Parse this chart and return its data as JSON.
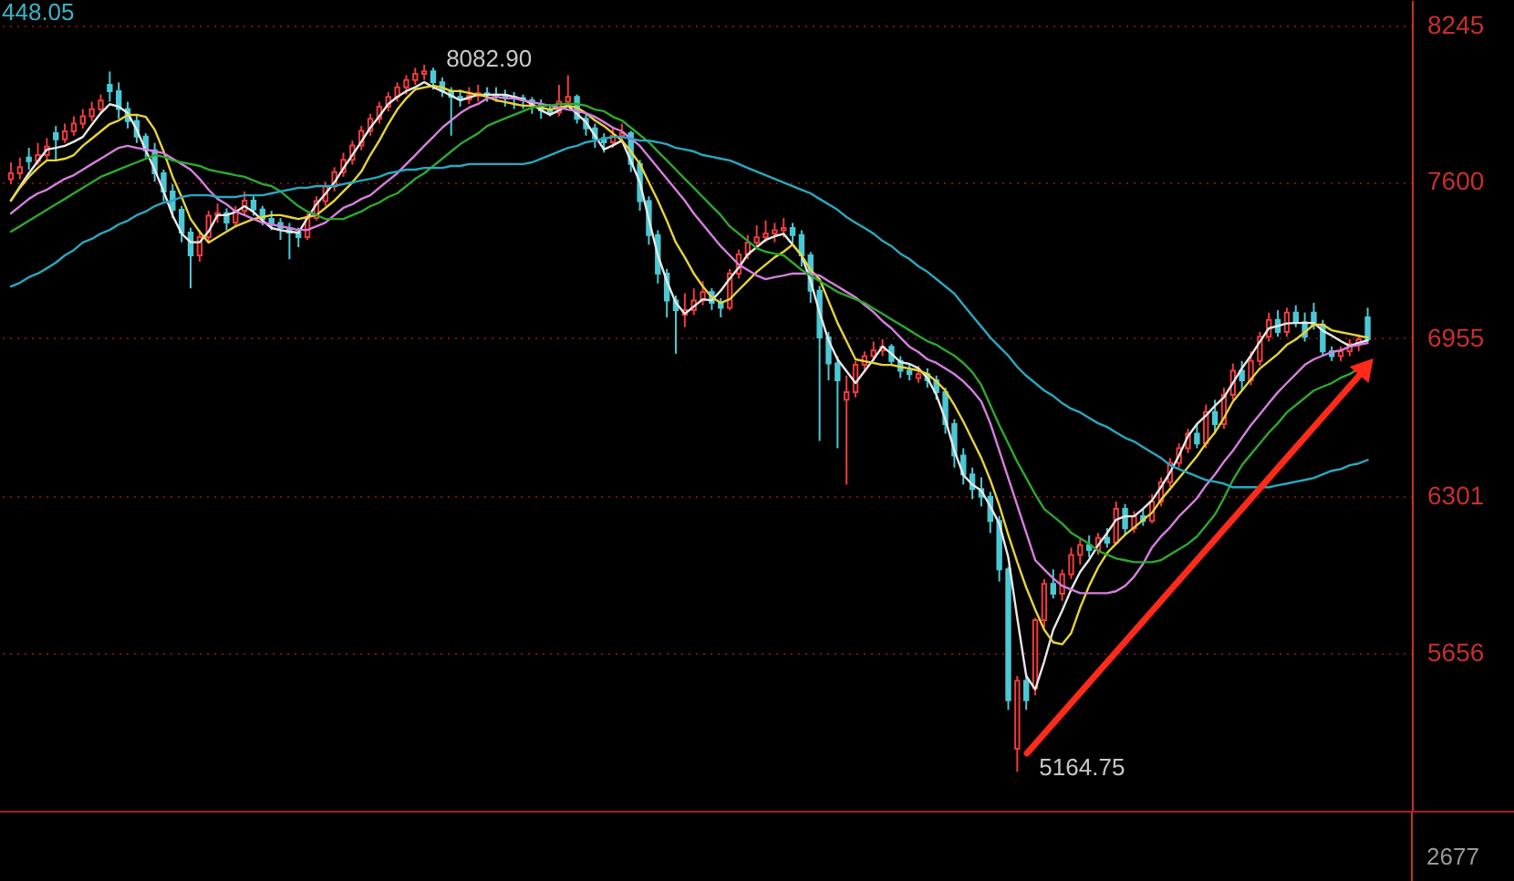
{
  "chart_data": {
    "type": "candlestick",
    "categories": [
      null,
      null,
      null,
      null,
      null,
      null,
      null,
      null,
      null,
      null,
      null,
      null,
      null,
      null,
      null,
      null,
      null,
      null,
      null,
      null,
      null,
      null,
      null,
      null,
      null,
      null,
      null,
      null,
      null,
      null,
      null,
      null,
      null,
      null,
      null,
      null,
      null,
      null,
      null,
      null,
      null,
      null,
      null,
      null,
      null,
      null,
      null,
      null,
      null,
      null,
      null,
      null,
      null,
      null,
      null,
      null,
      null,
      null,
      null,
      null,
      null,
      null,
      null,
      null,
      null,
      null,
      null,
      null,
      null,
      null,
      null,
      null,
      null,
      null,
      null,
      null,
      null,
      null,
      null,
      null,
      null,
      null,
      null,
      null,
      null,
      null,
      null,
      null,
      null,
      null,
      null,
      null,
      null,
      null,
      null,
      null,
      null,
      null,
      null,
      null,
      null,
      null,
      null,
      null,
      null,
      null,
      null,
      null,
      null,
      null,
      null,
      null,
      null,
      null,
      null,
      null,
      null,
      null,
      null,
      null,
      null,
      null,
      null,
      null,
      null,
      null,
      null,
      null,
      null,
      null,
      null,
      null,
      null,
      null,
      null,
      null,
      null,
      null,
      null,
      null,
      null,
      null,
      null,
      null,
      null,
      null,
      null,
      null,
      null,
      null,
      null,
      null
    ],
    "ohlc": [
      [
        7610,
        7680,
        7590,
        7635
      ],
      [
        7635,
        7700,
        7610,
        7660
      ],
      [
        7700,
        7740,
        7650,
        7685
      ],
      [
        7685,
        7760,
        7670,
        7710
      ],
      [
        7710,
        7780,
        7690,
        7745
      ],
      [
        7800,
        7830,
        7690,
        7775
      ],
      [
        7775,
        7840,
        7760,
        7808
      ],
      [
        7808,
        7870,
        7790,
        7840
      ],
      [
        7840,
        7900,
        7820,
        7870
      ],
      [
        7870,
        7930,
        7850,
        7899
      ],
      [
        7899,
        7960,
        7880,
        7935
      ],
      [
        8000,
        8055,
        7930,
        7974
      ],
      [
        7974,
        8010,
        7860,
        7900
      ],
      [
        7900,
        7930,
        7820,
        7850
      ],
      [
        7850,
        7880,
        7760,
        7786
      ],
      [
        7786,
        7800,
        7700,
        7730
      ],
      [
        7730,
        7760,
        7600,
        7635
      ],
      [
        7635,
        7650,
        7520,
        7560
      ],
      [
        7560,
        7590,
        7450,
        7484
      ],
      [
        7484,
        7500,
        7350,
        7390
      ],
      [
        7390,
        7410,
        7160,
        7296
      ],
      [
        7296,
        7400,
        7270,
        7371
      ],
      [
        7371,
        7480,
        7350,
        7460
      ],
      [
        7460,
        7510,
        7430,
        7470
      ],
      [
        7470,
        7490,
        7400,
        7432
      ],
      [
        7432,
        7500,
        7420,
        7480
      ],
      [
        7480,
        7560,
        7460,
        7522
      ],
      [
        7522,
        7540,
        7460,
        7485
      ],
      [
        7485,
        7500,
        7420,
        7447
      ],
      [
        7447,
        7480,
        7400,
        7430
      ],
      [
        7430,
        7450,
        7360,
        7409
      ],
      [
        7409,
        7430,
        7280,
        7390
      ],
      [
        7390,
        7410,
        7330,
        7371
      ],
      [
        7371,
        7470,
        7360,
        7450
      ],
      [
        7450,
        7540,
        7440,
        7520
      ],
      [
        7520,
        7600,
        7500,
        7580
      ],
      [
        7580,
        7660,
        7560,
        7640
      ],
      [
        7640,
        7720,
        7620,
        7690
      ],
      [
        7690,
        7770,
        7670,
        7750
      ],
      [
        7750,
        7830,
        7730,
        7810
      ],
      [
        7810,
        7880,
        7790,
        7860
      ],
      [
        7860,
        7930,
        7840,
        7910
      ],
      [
        7910,
        7970,
        7890,
        7950
      ],
      [
        7950,
        8010,
        7930,
        7990
      ],
      [
        7990,
        8040,
        7960,
        8020
      ],
      [
        8020,
        8070,
        8000,
        8045
      ],
      [
        8045,
        8082.9,
        8020,
        8055
      ],
      [
        8055,
        8070,
        7980,
        8010
      ],
      [
        8010,
        8030,
        7950,
        7975
      ],
      [
        7975,
        7990,
        7790,
        7950
      ],
      [
        7950,
        7980,
        7910,
        7940
      ],
      [
        7940,
        7990,
        7920,
        7955
      ],
      [
        7955,
        8000,
        7930,
        7965
      ],
      [
        7965,
        7990,
        7930,
        7960
      ],
      [
        7960,
        7990,
        7930,
        7959
      ],
      [
        7959,
        7980,
        7910,
        7950
      ],
      [
        7950,
        7970,
        7900,
        7945
      ],
      [
        7945,
        7960,
        7900,
        7936
      ],
      [
        7936,
        7950,
        7880,
        7915
      ],
      [
        7915,
        7940,
        7860,
        7895
      ],
      [
        7895,
        7920,
        7870,
        7885
      ],
      [
        7885,
        8000,
        7870,
        7930
      ],
      [
        7930,
        8040,
        7910,
        7950
      ],
      [
        7950,
        7960,
        7840,
        7860
      ],
      [
        7860,
        7880,
        7790,
        7820
      ],
      [
        7820,
        7840,
        7740,
        7780
      ],
      [
        7780,
        7800,
        7720,
        7763
      ],
      [
        7763,
        7820,
        7740,
        7790
      ],
      [
        7790,
        7840,
        7760,
        7800
      ],
      [
        7800,
        7810,
        7640,
        7673
      ],
      [
        7673,
        7690,
        7480,
        7520
      ],
      [
        7520,
        7540,
        7340,
        7380
      ],
      [
        7380,
        7400,
        7180,
        7221
      ],
      [
        7221,
        7240,
        7040,
        7110
      ],
      [
        7110,
        7130,
        6890,
        7070
      ],
      [
        7050,
        7140,
        7000,
        7070
      ],
      [
        7070,
        7160,
        7050,
        7110
      ],
      [
        7110,
        7190,
        7090,
        7145
      ],
      [
        7145,
        7160,
        7070,
        7100
      ],
      [
        7100,
        7120,
        7040,
        7080
      ],
      [
        7080,
        7240,
        7070,
        7221
      ],
      [
        7221,
        7320,
        7200,
        7300
      ],
      [
        7300,
        7380,
        7280,
        7349
      ],
      [
        7349,
        7420,
        7330,
        7370
      ],
      [
        7370,
        7440,
        7350,
        7386
      ],
      [
        7386,
        7430,
        7350,
        7400
      ],
      [
        7400,
        7450,
        7370,
        7409
      ],
      [
        7409,
        7430,
        7340,
        7380
      ],
      [
        7380,
        7400,
        7250,
        7296
      ],
      [
        7296,
        7310,
        7100,
        7150
      ],
      [
        7150,
        7170,
        6530,
        6957
      ],
      [
        6957,
        6980,
        6780,
        6850
      ],
      [
        6850,
        6880,
        6500,
        6780
      ],
      [
        6700,
        6800,
        6350,
        6731
      ],
      [
        6731,
        6860,
        6710,
        6844
      ],
      [
        6844,
        6900,
        6820,
        6880
      ],
      [
        6880,
        6940,
        6860,
        6904
      ],
      [
        6904,
        6950,
        6880,
        6919
      ],
      [
        6919,
        6930,
        6840,
        6860
      ],
      [
        6860,
        6880,
        6790,
        6820
      ],
      [
        6820,
        6850,
        6780,
        6806
      ],
      [
        6790,
        6840,
        6770,
        6806
      ],
      [
        6806,
        6830,
        6750,
        6780
      ],
      [
        6780,
        6800,
        6700,
        6731
      ],
      [
        6731,
        6750,
        6560,
        6600
      ],
      [
        6600,
        6620,
        6420,
        6470
      ],
      [
        6470,
        6500,
        6350,
        6392
      ],
      [
        6392,
        6420,
        6290,
        6332
      ],
      [
        6332,
        6380,
        6260,
        6300
      ],
      [
        6300,
        6320,
        6150,
        6200
      ],
      [
        6200,
        6220,
        5950,
        6000
      ],
      [
        6000,
        6010,
        5420,
        5460
      ],
      [
        5260,
        5560,
        5164.75,
        5540
      ],
      [
        5540,
        5570,
        5420,
        5460
      ],
      [
        5510,
        5800,
        5480,
        5790
      ],
      [
        5790,
        5960,
        5760,
        5940
      ],
      [
        5940,
        6000,
        5880,
        5900
      ],
      [
        5900,
        6000,
        5870,
        5980
      ],
      [
        5980,
        6090,
        5960,
        6060
      ],
      [
        6060,
        6130,
        6020,
        6100
      ],
      [
        6100,
        6140,
        6050,
        6080
      ],
      [
        6080,
        6150,
        6060,
        6130
      ],
      [
        6130,
        6170,
        6090,
        6110
      ],
      [
        6110,
        6280,
        6100,
        6250
      ],
      [
        6250,
        6270,
        6140,
        6170
      ],
      [
        6170,
        6240,
        6150,
        6220
      ],
      [
        6220,
        6250,
        6180,
        6200
      ],
      [
        6200,
        6310,
        6190,
        6280
      ],
      [
        6280,
        6380,
        6260,
        6360
      ],
      [
        6360,
        6460,
        6340,
        6440
      ],
      [
        6440,
        6520,
        6420,
        6500
      ],
      [
        6500,
        6580,
        6480,
        6560
      ],
      [
        6560,
        6600,
        6500,
        6520
      ],
      [
        6520,
        6680,
        6500,
        6650
      ],
      [
        6650,
        6700,
        6560,
        6600
      ],
      [
        6600,
        6750,
        6580,
        6720
      ],
      [
        6720,
        6850,
        6700,
        6820
      ],
      [
        6820,
        6860,
        6740,
        6780
      ],
      [
        6780,
        6900,
        6760,
        6860
      ],
      [
        6860,
        6980,
        6840,
        6960
      ],
      [
        6960,
        7060,
        6940,
        7030
      ],
      [
        7030,
        7070,
        6960,
        6980
      ],
      [
        6980,
        7080,
        6960,
        7060
      ],
      [
        7060,
        7090,
        7000,
        7020
      ],
      [
        7020,
        7060,
        6940,
        6960
      ],
      [
        7060,
        7100,
        6990,
        7010
      ],
      [
        7010,
        7030,
        6880,
        6900
      ],
      [
        6900,
        6920,
        6860,
        6880
      ],
      [
        6880,
        6920,
        6860,
        6900
      ],
      [
        6900,
        6950,
        6880,
        6930
      ],
      [
        6930,
        6970,
        6900,
        6950
      ],
      [
        7040,
        7080,
        6940,
        6950
      ]
    ],
    "colors": [
      "#f03c3c",
      "#f03c3c",
      "#4cc8d4",
      "#f03c3c",
      "#f03c3c",
      "#4cc8d4",
      "#f03c3c",
      "#f03c3c",
      "#f03c3c",
      "#f03c3c",
      "#f03c3c",
      "#4cc8d4",
      "#4cc8d4",
      "#4cc8d4",
      "#4cc8d4",
      "#4cc8d4",
      "#4cc8d4",
      "#4cc8d4",
      "#4cc8d4",
      "#4cc8d4",
      "#4cc8d4",
      "#f03c3c",
      "#f03c3c",
      "#f03c3c",
      "#4cc8d4",
      "#f03c3c",
      "#f03c3c",
      "#4cc8d4",
      "#4cc8d4",
      "#4cc8d4",
      "#4cc8d4",
      "#4cc8d4",
      "#4cc8d4",
      "#f03c3c",
      "#f03c3c",
      "#f03c3c",
      "#f03c3c",
      "#f03c3c",
      "#f03c3c",
      "#f03c3c",
      "#f03c3c",
      "#f03c3c",
      "#f03c3c",
      "#f03c3c",
      "#f03c3c",
      "#f03c3c",
      "#f03c3c",
      "#4cc8d4",
      "#4cc8d4",
      "#4cc8d4",
      "#4cc8d4",
      "#f03c3c",
      "#f03c3c",
      "#4cc8d4",
      "#4cc8d4",
      "#4cc8d4",
      "#4cc8d4",
      "#4cc8d4",
      "#4cc8d4",
      "#4cc8d4",
      "#4cc8d4",
      "#f03c3c",
      "#f03c3c",
      "#4cc8d4",
      "#4cc8d4",
      "#4cc8d4",
      "#4cc8d4",
      "#f03c3c",
      "#f03c3c",
      "#4cc8d4",
      "#4cc8d4",
      "#4cc8d4",
      "#4cc8d4",
      "#4cc8d4",
      "#4cc8d4",
      "#f03c3c",
      "#f03c3c",
      "#f03c3c",
      "#4cc8d4",
      "#4cc8d4",
      "#f03c3c",
      "#f03c3c",
      "#f03c3c",
      "#f03c3c",
      "#f03c3c",
      "#f03c3c",
      "#f03c3c",
      "#4cc8d4",
      "#4cc8d4",
      "#4cc8d4",
      "#4cc8d4",
      "#4cc8d4",
      "#4cc8d4",
      "#f03c3c",
      "#f03c3c",
      "#f03c3c",
      "#f03c3c",
      "#f03c3c",
      "#4cc8d4",
      "#4cc8d4",
      "#4cc8d4",
      "#f03c3c",
      "#4cc8d4",
      "#4cc8d4",
      "#4cc8d4",
      "#4cc8d4",
      "#4cc8d4",
      "#4cc8d4",
      "#4cc8d4",
      "#4cc8d4",
      "#4cc8d4",
      "#4cc8d4",
      "#f03c3c",
      "#4cc8d4",
      "#f03c3c",
      "#f03c3c",
      "#4cc8d4",
      "#f03c3c",
      "#f03c3c",
      "#f03c3c",
      "#4cc8d4",
      "#f03c3c",
      "#4cc8d4",
      "#f03c3c",
      "#4cc8d4",
      "#f03c3c",
      "#4cc8d4",
      "#f03c3c",
      "#f03c3c",
      "#f03c3c",
      "#f03c3c",
      "#f03c3c",
      "#4cc8d4",
      "#f03c3c",
      "#4cc8d4",
      "#f03c3c",
      "#f03c3c",
      "#4cc8d4",
      "#f03c3c",
      "#f03c3c",
      "#f03c3c",
      "#4cc8d4",
      "#f03c3c",
      "#4cc8d4",
      "#4cc8d4",
      "#4cc8d4",
      "#4cc8d4",
      "#4cc8d4",
      "#f03c3c",
      "#f03c3c",
      "#f03c3c",
      "#4cc8d4"
    ],
    "series": [
      {
        "type": "line",
        "color": "#e8e8e8",
        "values": [
          7522,
          7580,
          7635,
          7685,
          7733,
          7740,
          7748,
          7765,
          7785,
          7835,
          7883,
          7920,
          7910,
          7883,
          7815,
          7730,
          7650,
          7560,
          7460,
          7386,
          7350,
          7350,
          7395,
          7462,
          7462,
          7475,
          7499,
          7475,
          7440,
          7409,
          7400,
          7394,
          7390,
          7450,
          7507,
          7550,
          7597,
          7655,
          7710,
          7765,
          7823,
          7870,
          7921,
          7950,
          7974,
          7990,
          8011,
          7990,
          7974,
          7955,
          7936,
          7948,
          7959,
          7959,
          7959,
          7959,
          7950,
          7940,
          7920,
          7895,
          7876,
          7895,
          7914,
          7880,
          7846,
          7790,
          7733,
          7750,
          7770,
          7685,
          7597,
          7445,
          7296,
          7190,
          7100,
          7055,
          7085,
          7115,
          7110,
          7150,
          7200,
          7245,
          7300,
          7330,
          7360,
          7375,
          7385,
          7340,
          7296,
          7190,
          7060,
          6945,
          6867,
          6818,
          6769,
          6818,
          6867,
          6920,
          6890,
          6855,
          6848,
          6830,
          6790,
          6720,
          6618,
          6490,
          6390,
          6350,
          6325,
          6260,
          6189,
          6050,
          5800,
          5560,
          5505,
          5620,
          5750,
          5830,
          5917,
          5990,
          6040,
          6100,
          6150,
          6205,
          6219,
          6219,
          6250,
          6285,
          6340,
          6400,
          6470,
          6550,
          6600,
          6635,
          6675,
          6710,
          6770,
          6830,
          6882,
          6940,
          6995,
          7005,
          7015,
          7017,
          7017,
          7017,
          6985,
          6965,
          6942,
          6922,
          6935,
          6945
        ]
      },
      {
        "type": "line",
        "color": "#e6d43a",
        "values": [
          7522,
          7575,
          7620,
          7657,
          7688,
          7688,
          7695,
          7710,
          7748,
          7778,
          7808,
          7838,
          7853,
          7876,
          7876,
          7868,
          7815,
          7725,
          7620,
          7537,
          7446,
          7394,
          7349,
          7371,
          7394,
          7416,
          7431,
          7446,
          7454,
          7462,
          7462,
          7454,
          7446,
          7454,
          7462,
          7492,
          7522,
          7560,
          7597,
          7642,
          7710,
          7770,
          7838,
          7898,
          7944,
          7981,
          7989,
          7996,
          7989,
          7974,
          7974,
          7966,
          7959,
          7951,
          7936,
          7929,
          7921,
          7914,
          7914,
          7906,
          7898,
          7906,
          7914,
          7906,
          7883,
          7853,
          7830,
          7800,
          7770,
          7725,
          7673,
          7597,
          7522,
          7439,
          7349,
          7288,
          7221,
          7168,
          7123,
          7100,
          7115,
          7153,
          7190,
          7228,
          7258,
          7288,
          7311,
          7341,
          7296,
          7236,
          7198,
          7107,
          7017,
          6942,
          6867,
          6859,
          6852,
          6844,
          6844,
          6836,
          6829,
          6821,
          6806,
          6776,
          6738,
          6678,
          6610,
          6535,
          6460,
          6369,
          6264,
          6143,
          6030,
          5925,
          5834,
          5751,
          5699,
          5691,
          5737,
          5842,
          5932,
          6008,
          6068,
          6106,
          6143,
          6173,
          6204,
          6234,
          6287,
          6332,
          6377,
          6422,
          6467,
          6520,
          6565,
          6625,
          6693,
          6738,
          6784,
          6829,
          6859,
          6889,
          6927,
          6949,
          6979,
          7010,
          7010,
          6987,
          6979,
          6972,
          6964,
          6957
        ]
      },
      {
        "type": "line",
        "color": "#d77fe0",
        "values": [
          7469,
          7499,
          7529,
          7552,
          7567,
          7590,
          7612,
          7627,
          7650,
          7673,
          7695,
          7718,
          7740,
          7748,
          7740,
          7733,
          7725,
          7718,
          7695,
          7673,
          7650,
          7612,
          7567,
          7529,
          7507,
          7477,
          7462,
          7446,
          7431,
          7424,
          7416,
          7409,
          7401,
          7401,
          7416,
          7431,
          7462,
          7492,
          7507,
          7529,
          7544,
          7575,
          7605,
          7635,
          7673,
          7710,
          7748,
          7785,
          7823,
          7853,
          7883,
          7906,
          7921,
          7944,
          7951,
          7944,
          7944,
          7936,
          7929,
          7921,
          7914,
          7906,
          7898,
          7891,
          7883,
          7868,
          7846,
          7823,
          7808,
          7778,
          7748,
          7703,
          7657,
          7612,
          7567,
          7522,
          7469,
          7424,
          7379,
          7334,
          7296,
          7258,
          7236,
          7213,
          7198,
          7206,
          7213,
          7221,
          7221,
          7221,
          7213,
          7190,
          7168,
          7145,
          7123,
          7092,
          7062,
          7025,
          6995,
          6957,
          6919,
          6897,
          6867,
          6852,
          6829,
          6806,
          6776,
          6738,
          6693,
          6603,
          6490,
          6377,
          6264,
          6151,
          6038,
          6000,
          5963,
          5932,
          5917,
          5902,
          5902,
          5902,
          5902,
          5910,
          5932,
          5970,
          6023,
          6091,
          6136,
          6173,
          6219,
          6256,
          6294,
          6347,
          6392,
          6444,
          6490,
          6543,
          6595,
          6640,
          6686,
          6731,
          6769,
          6806,
          6844,
          6867,
          6882,
          6897,
          6904,
          6919,
          6927,
          6934
        ]
      },
      {
        "type": "line",
        "color": "#2ea82e",
        "values": [
          7394,
          7416,
          7439,
          7462,
          7484,
          7507,
          7529,
          7552,
          7575,
          7597,
          7620,
          7635,
          7650,
          7665,
          7680,
          7695,
          7710,
          7703,
          7688,
          7680,
          7673,
          7665,
          7650,
          7642,
          7635,
          7627,
          7620,
          7605,
          7590,
          7582,
          7560,
          7529,
          7499,
          7477,
          7462,
          7446,
          7446,
          7446,
          7462,
          7477,
          7499,
          7514,
          7537,
          7552,
          7582,
          7612,
          7635,
          7665,
          7695,
          7725,
          7755,
          7778,
          7800,
          7830,
          7846,
          7861,
          7876,
          7891,
          7906,
          7914,
          7914,
          7921,
          7921,
          7921,
          7914,
          7898,
          7891,
          7868,
          7853,
          7823,
          7793,
          7763,
          7725,
          7688,
          7650,
          7612,
          7575,
          7537,
          7499,
          7462,
          7416,
          7386,
          7356,
          7326,
          7311,
          7303,
          7296,
          7266,
          7236,
          7213,
          7190,
          7168,
          7145,
          7130,
          7115,
          7100,
          7077,
          7055,
          7032,
          7010,
          6987,
          6964,
          6942,
          6927,
          6904,
          6882,
          6852,
          6814,
          6761,
          6678,
          6595,
          6520,
          6444,
          6377,
          6309,
          6249,
          6219,
          6189,
          6151,
          6128,
          6106,
          6076,
          6061,
          6045,
          6038,
          6030,
          6030,
          6030,
          6038,
          6061,
          6083,
          6106,
          6136,
          6181,
          6226,
          6294,
          6369,
          6430,
          6475,
          6520,
          6565,
          6603,
          6648,
          6678,
          6708,
          6738,
          6754,
          6769,
          6791,
          6806,
          6829,
          6844
        ]
      },
      {
        "type": "line",
        "color": "#2aa8c0",
        "values": [
          7168,
          7183,
          7206,
          7221,
          7243,
          7266,
          7296,
          7318,
          7349,
          7364,
          7386,
          7401,
          7424,
          7439,
          7462,
          7477,
          7499,
          7514,
          7522,
          7537,
          7544,
          7544,
          7544,
          7537,
          7537,
          7537,
          7544,
          7544,
          7544,
          7552,
          7560,
          7567,
          7575,
          7575,
          7582,
          7582,
          7582,
          7590,
          7597,
          7605,
          7612,
          7620,
          7635,
          7642,
          7650,
          7650,
          7657,
          7657,
          7657,
          7665,
          7665,
          7673,
          7673,
          7673,
          7673,
          7673,
          7673,
          7673,
          7680,
          7695,
          7710,
          7725,
          7740,
          7748,
          7763,
          7770,
          7778,
          7785,
          7785,
          7778,
          7770,
          7770,
          7763,
          7755,
          7740,
          7733,
          7725,
          7710,
          7703,
          7695,
          7688,
          7673,
          7657,
          7642,
          7627,
          7612,
          7597,
          7582,
          7567,
          7552,
          7529,
          7507,
          7484,
          7454,
          7431,
          7409,
          7386,
          7356,
          7334,
          7303,
          7281,
          7251,
          7228,
          7198,
          7168,
          7138,
          7092,
          7047,
          7002,
          6957,
          6919,
          6882,
          6836,
          6799,
          6769,
          6738,
          6716,
          6686,
          6663,
          6648,
          6625,
          6603,
          6588,
          6565,
          6543,
          6528,
          6505,
          6482,
          6460,
          6430,
          6414,
          6399,
          6384,
          6369,
          6362,
          6354,
          6339,
          6339,
          6339,
          6339,
          6339,
          6347,
          6354,
          6362,
          6369,
          6377,
          6392,
          6407,
          6414,
          6430,
          6437,
          6452
        ]
      }
    ],
    "ylim": [
      5000,
      8350
    ],
    "yticks": [
      8245,
      7600,
      6955,
      6301,
      5656
    ],
    "grid": "y",
    "tick_labels": "y",
    "annotations": [
      "448.05",
      "2677",
      "8082.90",
      "5164.75"
    ]
  }
}
